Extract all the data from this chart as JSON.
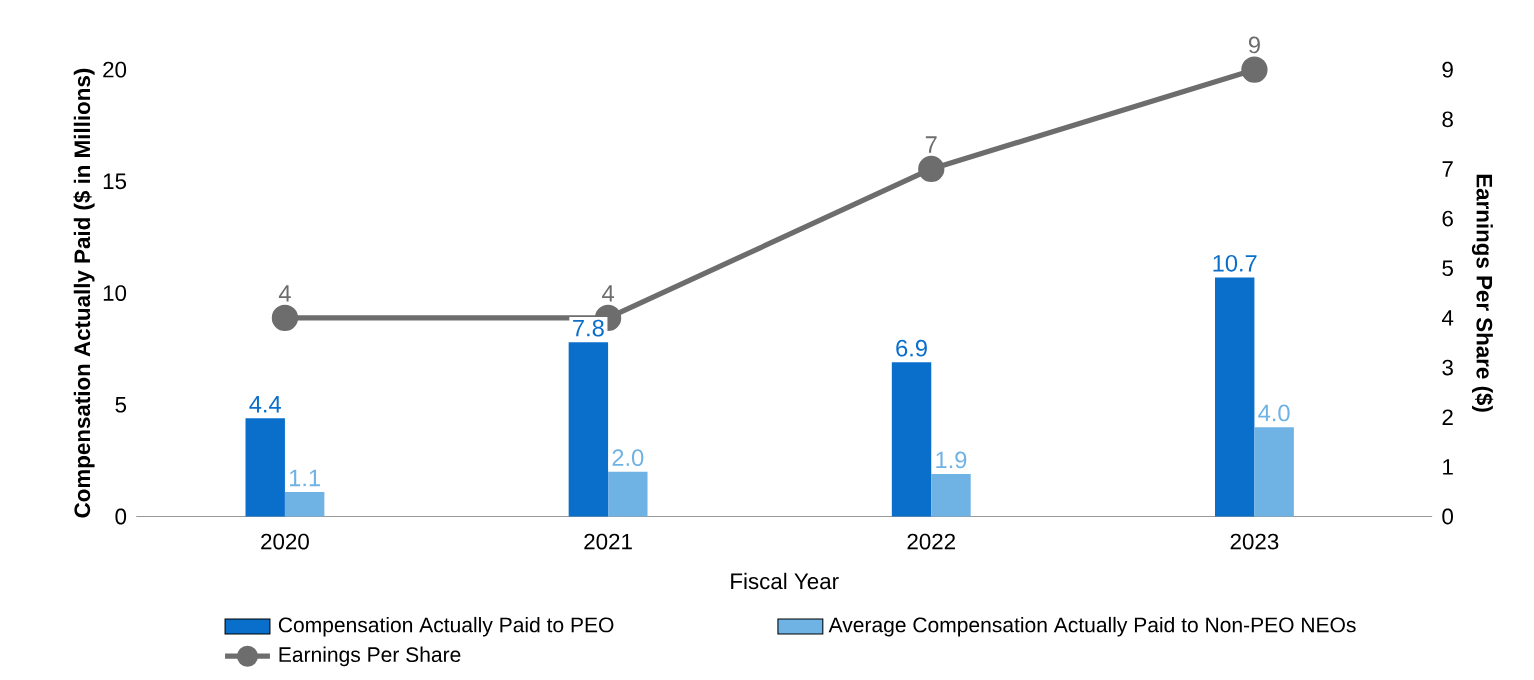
{
  "chart_data": {
    "type": "bar",
    "xlabel": "Fiscal Year",
    "ylabel": "Compensation Actually Paid ($ in Millions)",
    "y2label": "Earnings Per Share ($)",
    "categories": [
      "2020",
      "2021",
      "2022",
      "2023"
    ],
    "series": [
      {
        "name": "Compensation Actually Paid to PEO",
        "color": "#0a6ecb",
        "values": [
          4.4,
          7.8,
          6.9,
          10.7
        ],
        "value_labels": [
          "4.4",
          "7.8",
          "6.9",
          "10.7"
        ]
      },
      {
        "name": "Average Compensation Actually Paid to Non-PEO NEOs",
        "color": "#6fb2e4",
        "values": [
          1.1,
          2.0,
          1.9,
          4.0
        ],
        "value_labels": [
          "1.1",
          "2.0",
          "1.9",
          "4.0"
        ]
      },
      {
        "name": "Earnings Per Share",
        "type": "line",
        "axis": "y2",
        "color": "#6d6d6d",
        "values": [
          4,
          4,
          7,
          9
        ],
        "value_labels": [
          "4",
          "4",
          "7",
          "9"
        ]
      }
    ],
    "ylim": [
      0,
      20
    ],
    "yticks": [
      0,
      5,
      10,
      15,
      20
    ],
    "y2lim": [
      0,
      9
    ],
    "y2ticks": [
      0,
      1,
      2,
      3,
      4,
      5,
      6,
      7,
      8,
      9
    ],
    "legend": "bottom",
    "marker": "circle",
    "line_style": "solid",
    "grid": false
  }
}
